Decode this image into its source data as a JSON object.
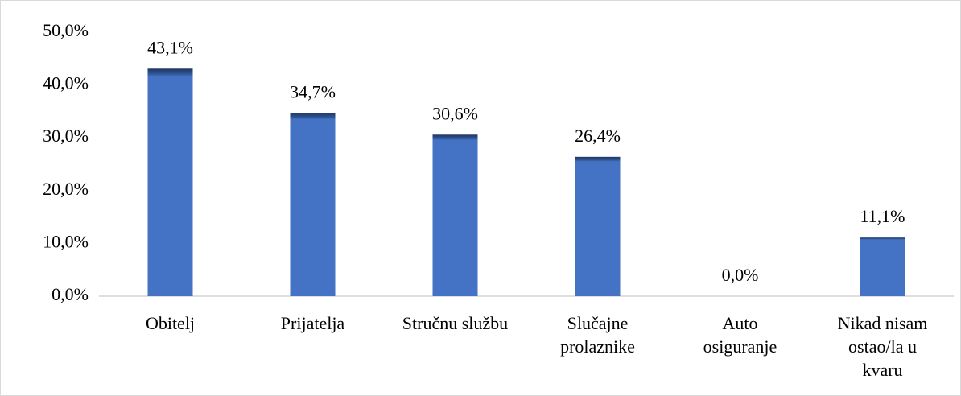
{
  "chart_data": {
    "type": "bar",
    "categories": [
      "Obitelj",
      "Prijatelja",
      "Stručnu službu",
      "Slučajne prolaznike",
      "Auto osiguranje",
      "Nikad nisam ostao/la u kvaru"
    ],
    "values": [
      43.1,
      34.7,
      30.6,
      26.4,
      0,
      11.1
    ],
    "value_labels": [
      "43,1%",
      "34,7%",
      "30,6%",
      "26,4%",
      "0,0%",
      "11,1%"
    ],
    "color": "#4472c4",
    "ylim": [
      0,
      50
    ],
    "yticks": [
      {
        "value": 0,
        "label": "0,0%"
      },
      {
        "value": 10,
        "label": "10,0%"
      },
      {
        "value": 20,
        "label": "20,0%"
      },
      {
        "value": 30,
        "label": "30,0%"
      },
      {
        "value": 40,
        "label": "40,0%"
      },
      {
        "value": 50,
        "label": "50,0%"
      }
    ],
    "grid": false
  }
}
